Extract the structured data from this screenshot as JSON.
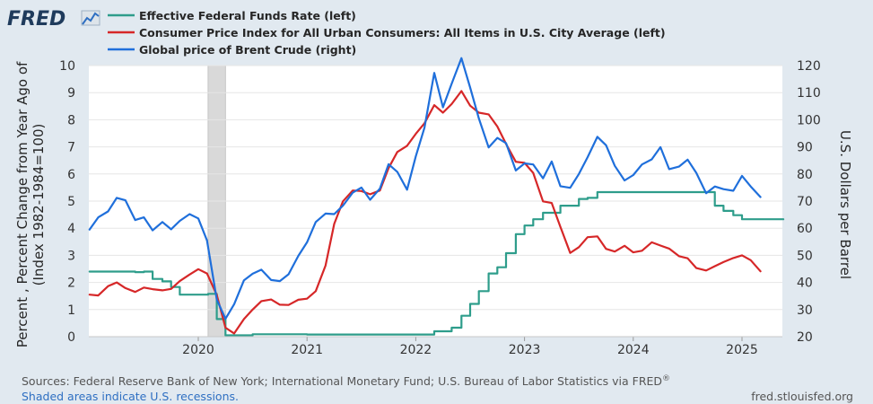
{
  "brand": {
    "logo_text": "FRED"
  },
  "chart_data": {
    "type": "line",
    "title": "",
    "xlabel": "",
    "x_ticks": [
      "2020",
      "2021",
      "2022",
      "2023",
      "2024",
      "2025"
    ],
    "x_range": [
      2019.0,
      2025.38
    ],
    "left_axis": {
      "label_line1": "Percent , Percent Change from Year Ago of",
      "label_line2": "(Index 1982-1984=100)",
      "ylim": [
        0,
        10
      ],
      "ticks": [
        "0",
        "1",
        "2",
        "3",
        "4",
        "5",
        "6",
        "7",
        "8",
        "9",
        "10"
      ]
    },
    "right_axis": {
      "label": "U.S. Dollars per Barrel",
      "ylim": [
        20,
        120
      ],
      "ticks": [
        "20",
        "30",
        "40",
        "50",
        "60",
        "70",
        "80",
        "90",
        "100",
        "110",
        "120"
      ]
    },
    "recessions": [
      [
        2020.09,
        2020.25
      ]
    ],
    "series": [
      {
        "name": "Effective Federal Funds Rate (left)",
        "axis": "left",
        "color": "#2e9d8b",
        "step": true,
        "points": [
          [
            2019.0,
            2.4
          ],
          [
            2019.42,
            2.38
          ],
          [
            2019.5,
            2.4
          ],
          [
            2019.58,
            2.13
          ],
          [
            2019.67,
            2.04
          ],
          [
            2019.75,
            1.83
          ],
          [
            2019.83,
            1.55
          ],
          [
            2020.09,
            1.58
          ],
          [
            2020.17,
            0.65
          ],
          [
            2020.25,
            0.05
          ],
          [
            2020.33,
            0.05
          ],
          [
            2020.5,
            0.09
          ],
          [
            2020.75,
            0.09
          ],
          [
            2021.0,
            0.08
          ],
          [
            2021.5,
            0.08
          ],
          [
            2022.0,
            0.08
          ],
          [
            2022.17,
            0.2
          ],
          [
            2022.33,
            0.33
          ],
          [
            2022.42,
            0.77
          ],
          [
            2022.5,
            1.21
          ],
          [
            2022.58,
            1.68
          ],
          [
            2022.67,
            2.33
          ],
          [
            2022.75,
            2.56
          ],
          [
            2022.83,
            3.08
          ],
          [
            2022.92,
            3.78
          ],
          [
            2023.0,
            4.1
          ],
          [
            2023.08,
            4.33
          ],
          [
            2023.17,
            4.57
          ],
          [
            2023.33,
            4.83
          ],
          [
            2023.5,
            5.08
          ],
          [
            2023.58,
            5.12
          ],
          [
            2023.67,
            5.33
          ],
          [
            2024.67,
            5.33
          ],
          [
            2024.75,
            4.83
          ],
          [
            2024.83,
            4.64
          ],
          [
            2024.92,
            4.48
          ],
          [
            2025.0,
            4.33
          ],
          [
            2025.38,
            4.33
          ]
        ]
      },
      {
        "name": "Consumer Price Index for All Urban Consumers: All Items in U.S. City Average (left)",
        "axis": "left",
        "color": "#d62728",
        "step": false,
        "points": [
          [
            2019.0,
            1.55
          ],
          [
            2019.08,
            1.52
          ],
          [
            2019.17,
            1.86
          ],
          [
            2019.25,
            2.0
          ],
          [
            2019.33,
            1.79
          ],
          [
            2019.42,
            1.65
          ],
          [
            2019.5,
            1.81
          ],
          [
            2019.58,
            1.75
          ],
          [
            2019.67,
            1.71
          ],
          [
            2019.75,
            1.76
          ],
          [
            2019.83,
            2.05
          ],
          [
            2019.92,
            2.29
          ],
          [
            2020.0,
            2.49
          ],
          [
            2020.08,
            2.33
          ],
          [
            2020.17,
            1.54
          ],
          [
            2020.25,
            0.33
          ],
          [
            2020.33,
            0.12
          ],
          [
            2020.42,
            0.65
          ],
          [
            2020.5,
            1.0
          ],
          [
            2020.58,
            1.31
          ],
          [
            2020.67,
            1.37
          ],
          [
            2020.75,
            1.18
          ],
          [
            2020.83,
            1.17
          ],
          [
            2020.92,
            1.36
          ],
          [
            2021.0,
            1.4
          ],
          [
            2021.08,
            1.68
          ],
          [
            2021.17,
            2.62
          ],
          [
            2021.25,
            4.16
          ],
          [
            2021.33,
            4.99
          ],
          [
            2021.42,
            5.39
          ],
          [
            2021.5,
            5.37
          ],
          [
            2021.58,
            5.25
          ],
          [
            2021.67,
            5.39
          ],
          [
            2021.75,
            6.22
          ],
          [
            2021.83,
            6.81
          ],
          [
            2021.92,
            7.04
          ],
          [
            2022.0,
            7.48
          ],
          [
            2022.08,
            7.87
          ],
          [
            2022.17,
            8.54
          ],
          [
            2022.25,
            8.26
          ],
          [
            2022.33,
            8.58
          ],
          [
            2022.42,
            9.06
          ],
          [
            2022.5,
            8.52
          ],
          [
            2022.58,
            8.26
          ],
          [
            2022.67,
            8.2
          ],
          [
            2022.75,
            7.75
          ],
          [
            2022.83,
            7.11
          ],
          [
            2022.92,
            6.45
          ],
          [
            2023.0,
            6.41
          ],
          [
            2023.08,
            6.04
          ],
          [
            2023.17,
            4.99
          ],
          [
            2023.25,
            4.93
          ],
          [
            2023.33,
            4.05
          ],
          [
            2023.42,
            3.09
          ],
          [
            2023.5,
            3.3
          ],
          [
            2023.58,
            3.67
          ],
          [
            2023.67,
            3.7
          ],
          [
            2023.75,
            3.24
          ],
          [
            2023.83,
            3.14
          ],
          [
            2023.92,
            3.35
          ],
          [
            2024.0,
            3.11
          ],
          [
            2024.08,
            3.17
          ],
          [
            2024.17,
            3.48
          ],
          [
            2024.25,
            3.36
          ],
          [
            2024.33,
            3.25
          ],
          [
            2024.42,
            2.97
          ],
          [
            2024.5,
            2.89
          ],
          [
            2024.58,
            2.53
          ],
          [
            2024.67,
            2.44
          ],
          [
            2024.75,
            2.6
          ],
          [
            2024.83,
            2.75
          ],
          [
            2024.92,
            2.9
          ],
          [
            2025.0,
            3.0
          ],
          [
            2025.08,
            2.82
          ],
          [
            2025.17,
            2.41
          ]
        ]
      },
      {
        "name": "Global price of Brent Crude (right)",
        "axis": "right",
        "color": "#1f6fdb",
        "step": false,
        "points": [
          [
            2019.0,
            59.5
          ],
          [
            2019.08,
            64.0
          ],
          [
            2019.17,
            66.2
          ],
          [
            2019.25,
            71.2
          ],
          [
            2019.33,
            70.3
          ],
          [
            2019.42,
            63.0
          ],
          [
            2019.5,
            64.0
          ],
          [
            2019.58,
            59.2
          ],
          [
            2019.67,
            62.3
          ],
          [
            2019.75,
            59.6
          ],
          [
            2019.83,
            62.7
          ],
          [
            2019.92,
            65.2
          ],
          [
            2020.0,
            63.6
          ],
          [
            2020.08,
            55.5
          ],
          [
            2020.17,
            33.7
          ],
          [
            2020.25,
            26.6
          ],
          [
            2020.33,
            32.0
          ],
          [
            2020.42,
            40.8
          ],
          [
            2020.5,
            43.2
          ],
          [
            2020.58,
            44.7
          ],
          [
            2020.67,
            40.9
          ],
          [
            2020.75,
            40.5
          ],
          [
            2020.83,
            43.0
          ],
          [
            2020.92,
            49.8
          ],
          [
            2021.0,
            54.8
          ],
          [
            2021.08,
            62.3
          ],
          [
            2021.17,
            65.4
          ],
          [
            2021.25,
            65.2
          ],
          [
            2021.33,
            68.3
          ],
          [
            2021.42,
            73.1
          ],
          [
            2021.5,
            75.0
          ],
          [
            2021.58,
            70.5
          ],
          [
            2021.67,
            74.6
          ],
          [
            2021.75,
            83.6
          ],
          [
            2021.83,
            80.8
          ],
          [
            2021.92,
            74.2
          ],
          [
            2022.0,
            86.5
          ],
          [
            2022.08,
            97.1
          ],
          [
            2022.17,
            117.3
          ],
          [
            2022.25,
            104.6
          ],
          [
            2022.33,
            113.3
          ],
          [
            2022.42,
            122.7
          ],
          [
            2022.5,
            111.9
          ],
          [
            2022.58,
            100.5
          ],
          [
            2022.67,
            89.8
          ],
          [
            2022.75,
            93.3
          ],
          [
            2022.83,
            91.4
          ],
          [
            2022.92,
            81.3
          ],
          [
            2023.0,
            83.9
          ],
          [
            2023.08,
            83.5
          ],
          [
            2023.17,
            78.4
          ],
          [
            2023.25,
            84.6
          ],
          [
            2023.33,
            75.5
          ],
          [
            2023.42,
            74.9
          ],
          [
            2023.5,
            80.0
          ],
          [
            2023.58,
            86.2
          ],
          [
            2023.67,
            93.7
          ],
          [
            2023.75,
            90.6
          ],
          [
            2023.83,
            83.0
          ],
          [
            2023.92,
            77.6
          ],
          [
            2024.0,
            79.6
          ],
          [
            2024.08,
            83.5
          ],
          [
            2024.17,
            85.4
          ],
          [
            2024.25,
            89.9
          ],
          [
            2024.33,
            81.8
          ],
          [
            2024.42,
            82.7
          ],
          [
            2024.5,
            85.3
          ],
          [
            2024.58,
            80.4
          ],
          [
            2024.67,
            72.9
          ],
          [
            2024.75,
            75.4
          ],
          [
            2024.83,
            74.4
          ],
          [
            2024.92,
            73.8
          ],
          [
            2025.0,
            79.3
          ],
          [
            2025.08,
            75.4
          ],
          [
            2025.17,
            71.5
          ]
        ]
      }
    ]
  },
  "footer": {
    "sources": "Sources: Federal Reserve Bank of New York; International Monetary Fund; U.S. Bureau of Labor Statistics via FRED",
    "reg_mark": "®",
    "shaded_note": "Shaded areas indicate U.S. recessions.",
    "site": "fred.stlouisfed.org"
  },
  "colors": {
    "background": "#e1e9f0",
    "plot_bg": "#ffffff",
    "grid": "#e6e6e6",
    "recession": "#d9d9d9",
    "link": "#2e6fc2",
    "footer_text": "#555555"
  }
}
